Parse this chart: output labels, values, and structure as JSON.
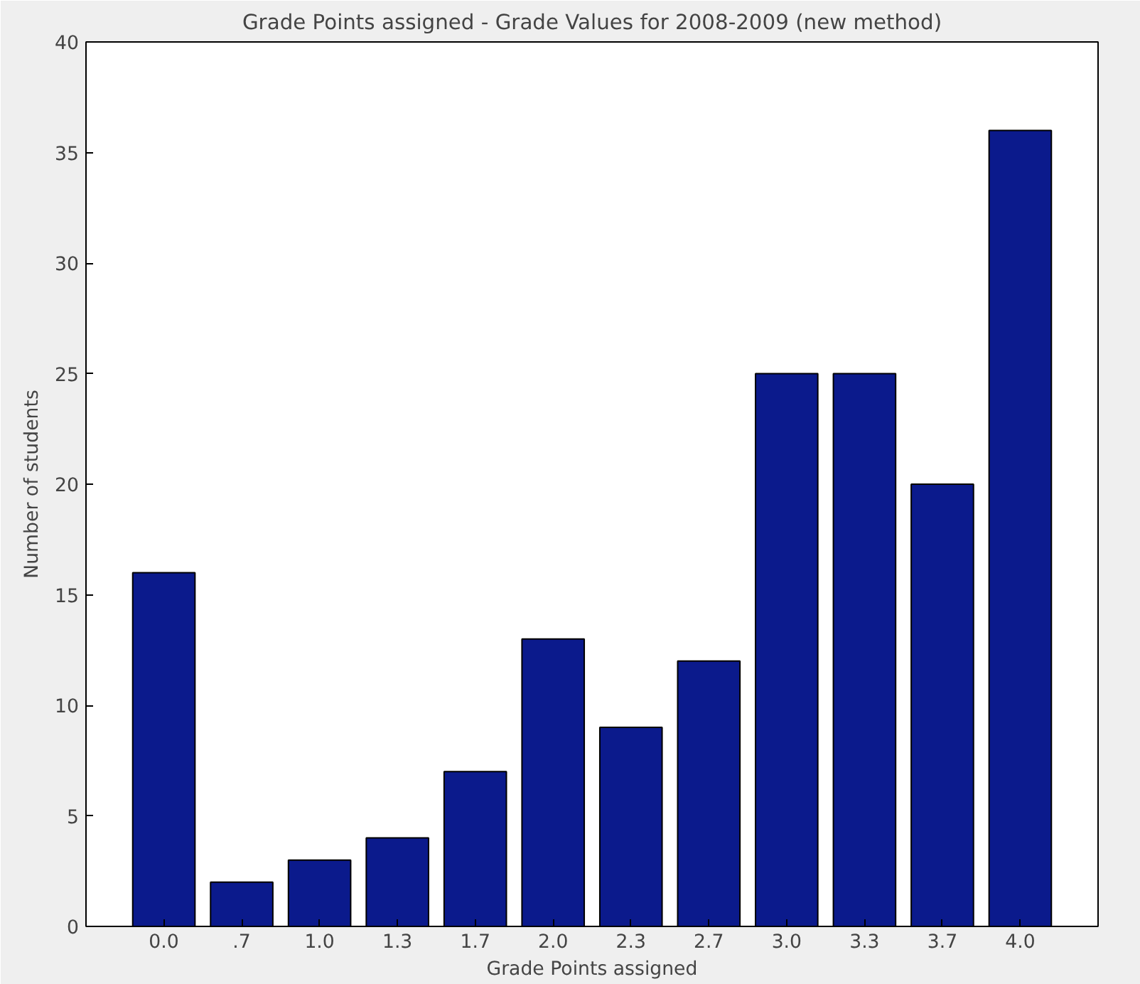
{
  "chart_data": {
    "type": "bar",
    "title": "Grade Points assigned - Grade Values for 2008-2009 (new method)",
    "xlabel": "Grade Points assigned",
    "ylabel": "Number of students",
    "categories": [
      "0.0",
      ".7",
      "1.0",
      "1.3",
      "1.7",
      "2.0",
      "2.3",
      "2.7",
      "3.0",
      "3.3",
      "3.7",
      "4.0"
    ],
    "values": [
      16,
      2,
      3,
      4,
      7,
      13,
      9,
      12,
      25,
      25,
      20,
      36
    ],
    "color": "#0b1a8c",
    "ylim": [
      0,
      40
    ],
    "yticks": [
      0,
      5,
      10,
      15,
      20,
      25,
      30,
      35,
      40
    ],
    "grid": false
  }
}
